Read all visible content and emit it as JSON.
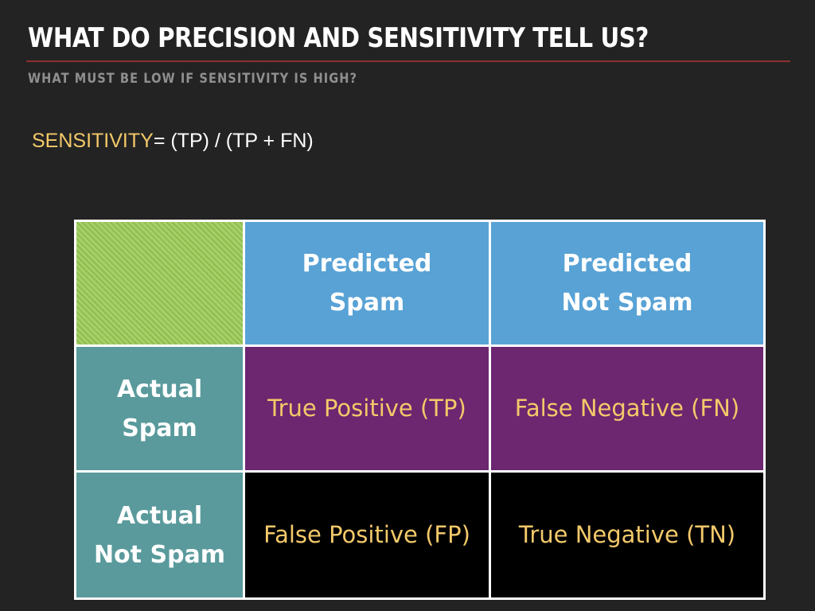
{
  "slide": {
    "title": "WHAT DO PRECISION AND SENSITIVITY TELL US?",
    "subtitle": "WHAT MUST BE LOW IF SENSITIVITY IS HIGH?",
    "formula": {
      "term": "SENSITIVITY",
      "expression": "= (TP) / (TP + FN)"
    }
  },
  "matrix": {
    "column_headers": [
      {
        "line1": "Predicted",
        "line2": "Spam"
      },
      {
        "line1": "Predicted",
        "line2": "Not Spam"
      }
    ],
    "row_headers": [
      {
        "line1": "Actual",
        "line2": "Spam"
      },
      {
        "line1": "Actual",
        "line2": "Not Spam"
      }
    ],
    "cells": [
      [
        "True Positive (TP)",
        "False Negative (FN)"
      ],
      [
        "False Positive (FP)",
        "True Negative (TN)"
      ]
    ]
  },
  "colors": {
    "background": "#232323",
    "title_rule": "#8e2f2f",
    "accent_text": "#f3c96a",
    "column_header": "#58a2d5",
    "row_header": "#5a9a9c",
    "positive_row": "#6c2770",
    "negative_row": "#000000",
    "corner": "#a7cf69"
  }
}
